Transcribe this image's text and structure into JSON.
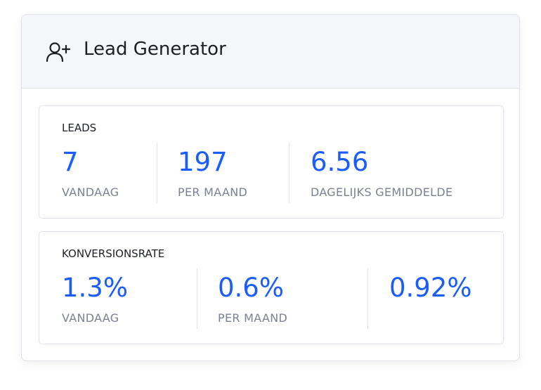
{
  "header": {
    "title": "Lead Generator"
  },
  "sections": [
    {
      "title": "LEADS",
      "stats": [
        {
          "value": "7",
          "label": "VANDAAG"
        },
        {
          "value": "197",
          "label": "PER MAAND"
        },
        {
          "value": "6.56",
          "label": "DAGELIJKS GEMIDDELDE"
        }
      ]
    },
    {
      "title": "KONVERSIONSRATE",
      "stats": [
        {
          "value": "1.3%",
          "label": "VANDAAG"
        },
        {
          "value": "0.6%",
          "label": "PER MAAND"
        },
        {
          "value": "0.92%"
        }
      ]
    }
  ]
}
